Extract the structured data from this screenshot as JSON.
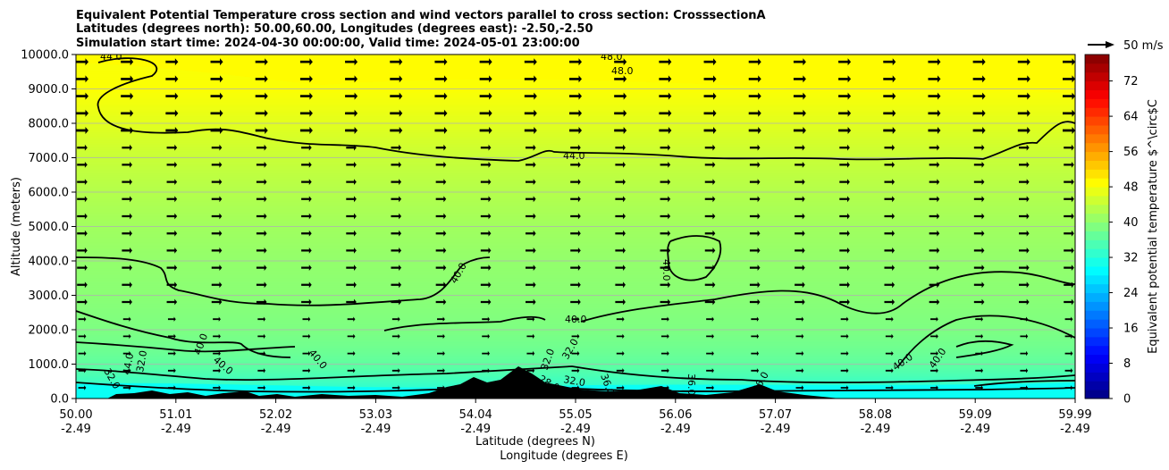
{
  "chart_data": {
    "type": "heatmap",
    "title_lines": [
      "Equivalent Potential Temperature cross section and wind vectors parallel to cross section: CrosssectionA",
      "Latitudes (degrees north): 50.00,60.00, Longitudes (degrees east): -2.50,-2.50",
      "Simulation start time: 2024-04-30 00:00:00, Valid time: 2024-05-01 23:00:00"
    ],
    "ylabel": "Altitude (meters)",
    "xlabel_lat": "Latitude (degrees N)",
    "xlabel_lon": "Longitude (degrees E)",
    "x_ticks_lat": [
      "50.00",
      "51.01",
      "52.02",
      "53.03",
      "54.04",
      "55.05",
      "56.06",
      "57.07",
      "58.08",
      "59.09",
      "59.99"
    ],
    "x_ticks_lon": [
      "-2.49",
      "-2.49",
      "-2.49",
      "-2.49",
      "-2.49",
      "-2.49",
      "-2.49",
      "-2.49",
      "-2.49",
      "-2.49",
      "-2.49"
    ],
    "y_ticks": [
      "0.0",
      "1000.0",
      "2000.0",
      "3000.0",
      "4000.0",
      "5000.0",
      "6000.0",
      "7000.0",
      "8000.0",
      "9000.0",
      "10000.0"
    ],
    "xlim": [
      50.0,
      59.99
    ],
    "ylim": [
      0,
      10000
    ],
    "grid": "horizontal",
    "colorbar": {
      "label": "Equivalent potential temperature $^\\circ$C",
      "min": 0,
      "max": 78,
      "step": 2,
      "ticks": [
        "0",
        "8",
        "16",
        "24",
        "32",
        "40",
        "48",
        "56",
        "64",
        "72"
      ]
    },
    "wind_key_label": "50 m/s",
    "contour_labels": [
      "44.0",
      "48.0",
      "48.0",
      "44.0",
      "40.0",
      "40.0",
      "40.0",
      "40.0",
      "40.0",
      "40.0",
      "40.0",
      "40.0",
      "44.0",
      "32.0",
      "32.0",
      "28.0",
      "32.0",
      "32.0",
      "32.0",
      "36.0",
      "36.0",
      "36.0"
    ],
    "temperature_field": {
      "profile_altitude_m": [
        0,
        500,
        1000,
        1500,
        2000,
        3000,
        4000,
        5000,
        6000,
        7000,
        8000,
        9000,
        10000
      ],
      "profile_theta_e_c": [
        31,
        34,
        36.5,
        37.8,
        38.8,
        39.8,
        40.5,
        41.5,
        43,
        44.5,
        46.5,
        48.5,
        48.2
      ]
    }
  },
  "colors": {
    "terrain": "#000000",
    "contour": "#000000",
    "grid": "#b0b0b0",
    "colormap": "jet"
  }
}
